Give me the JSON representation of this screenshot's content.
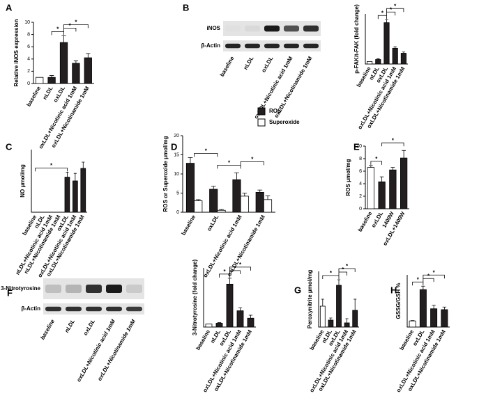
{
  "chart_data": [
    {
      "type": "bar",
      "panel": "A",
      "y_label": "Relative iNOS expression",
      "categories": [
        "baseline",
        "nLDL",
        "oxLDL",
        "oxLDL+Nicotinic acid 1mM",
        "oxLDL+Nicotinamide 1mM"
      ],
      "values": [
        1,
        1,
        6.7,
        3.3,
        4.2
      ],
      "errors": [
        0,
        0.3,
        1.1,
        0.4,
        0.7
      ],
      "colors": [
        "#ffffff",
        "#231f20",
        "#231f20",
        "#231f20",
        "#231f20"
      ],
      "ylim": [
        0,
        10
      ],
      "yticks": [
        0,
        2,
        4,
        6,
        8,
        10
      ],
      "significance": [
        {
          "text": "*",
          "between": [
            1,
            2
          ]
        },
        {
          "text": "*",
          "between": [
            2,
            3
          ]
        },
        {
          "text": "*",
          "between": [
            2,
            4
          ]
        }
      ]
    },
    {
      "type": "bar",
      "panel": "B",
      "y_label": "p-FAK/t-FAK (fold change)",
      "blot": {
        "bands": [
          "iNOS",
          "β-Actin"
        ],
        "lanes": [
          "baseline",
          "nLDL",
          "oxLDL",
          "oxLDL+Nicotinic acid 1mM",
          "oxLDL+Nicotinamide 1mM"
        ]
      },
      "categories": [
        "baseline",
        "nLDL",
        "oxLDL",
        "oxLDL+Nicotinic acid 1mM",
        "oxLDL+Nicotinamide 1mM"
      ],
      "values": [
        1,
        1.8,
        16.5,
        6.3,
        4.3
      ],
      "errors": [
        0,
        0.3,
        1.2,
        0.6,
        0.5
      ],
      "colors": [
        "#ffffff",
        "#231f20",
        "#231f20",
        "#231f20",
        "#231f20"
      ],
      "ylim": [
        0,
        20
      ],
      "significance": [
        {
          "text": "*",
          "between": [
            1,
            2
          ]
        },
        {
          "text": "*",
          "between": [
            2,
            3
          ]
        },
        {
          "text": "*",
          "between": [
            2,
            4
          ]
        }
      ]
    },
    {
      "type": "bar",
      "panel": "C",
      "y_label": "NO μmol/mg",
      "categories": [
        "baseline",
        "nLDL",
        "nLDL+Nicotinic acid 1mM",
        "nLDL+Nicotinamide 1mM",
        "oxLDL",
        "oxLDL+Nicotinic acid 1mM",
        "oxLDL+Nicotinamide 1mM"
      ],
      "values": [
        0,
        0,
        0,
        0,
        14,
        12.5,
        17.5
      ],
      "errors": [
        0,
        0,
        0,
        0,
        2,
        3,
        2.5
      ],
      "colors": [
        "#231f20",
        "#231f20",
        "#231f20",
        "#231f20",
        "#231f20",
        "#231f20",
        "#231f20"
      ],
      "ylim": [
        0,
        25
      ],
      "significance": [
        {
          "text": "*",
          "between": [
            0,
            4
          ]
        }
      ]
    },
    {
      "type": "grouped_bar",
      "panel": "D",
      "y_label": "ROS or Superoxide μmol/mg",
      "categories": [
        "baseline",
        "oxLDL",
        "oxLDL+Nicotinic acid 1mM",
        "oxLDL+Nicotinamide 1mM"
      ],
      "series": [
        {
          "name": "ROS",
          "color": "#231f20",
          "values": [
            12.8,
            6,
            8.5,
            5.2
          ],
          "errors": [
            1.5,
            0.8,
            1.8,
            0.6
          ]
        },
        {
          "name": "Superoxide",
          "color": "#ffffff",
          "values": [
            3,
            0.5,
            4.2,
            3.3
          ],
          "errors": [
            0.3,
            0.2,
            0.8,
            1
          ]
        }
      ],
      "ylim": [
        0,
        20
      ],
      "yticks": [
        0,
        5,
        10,
        15,
        20
      ],
      "significance": [
        {
          "text": "*",
          "between": [
            0,
            1
          ]
        },
        {
          "text": "*",
          "between": [
            1,
            2
          ]
        },
        {
          "text": "*",
          "between": [
            2,
            3
          ]
        }
      ]
    },
    {
      "type": "bar",
      "panel": "E",
      "y_label": "ROS μmol/mg",
      "categories": [
        "baseline",
        "oxLDL",
        "1400W",
        "oxLDL+1400W"
      ],
      "values": [
        6.6,
        4.3,
        6.2,
        8.1
      ],
      "errors": [
        0.3,
        0.8,
        0.4,
        1.2
      ],
      "colors": [
        "#ffffff",
        "#231f20",
        "#231f20",
        "#231f20"
      ],
      "ylim": [
        0,
        10
      ],
      "yticks": [
        0,
        2,
        4,
        6,
        8,
        10
      ],
      "significance": [
        {
          "text": "*",
          "between": [
            0,
            1
          ]
        },
        {
          "text": "*",
          "between": [
            1,
            3
          ]
        }
      ]
    },
    {
      "type": "bar",
      "panel": "F",
      "y_label": "3-Nitrotyrosine (fold change)",
      "blot": {
        "bands": [
          "3-Nitrotyrosine",
          "β-Actin"
        ],
        "lanes": [
          "baseline",
          "nLDL",
          "oxLDL",
          "oxLDL+Nicotinic acid 1mM",
          "oxLDL+Nicotinamide 1mM"
        ]
      },
      "categories": [
        "baseline",
        "nLDL",
        "oxLDL",
        "oxLDL+Nicotinic acid 1mM",
        "oxLDL+Nicotinamide 1mM"
      ],
      "values": [
        1,
        1.3,
        14.5,
        5.5,
        3
      ],
      "errors": [
        0,
        0.2,
        2,
        1,
        1
      ],
      "colors": [
        "#ffffff",
        "#231f20",
        "#231f20",
        "#231f20",
        "#231f20"
      ],
      "ylim": [
        0,
        20
      ],
      "significance": [
        {
          "text": "*",
          "between": [
            1,
            2
          ]
        },
        {
          "text": "*",
          "between": [
            2,
            3
          ]
        },
        {
          "text": "*",
          "between": [
            2,
            4
          ]
        }
      ]
    },
    {
      "type": "bar",
      "panel": "G",
      "y_label": "Peroxynitrite μmol/mg",
      "categories": [
        "baseline",
        "nLDL",
        "oxLDL",
        "oxLDL+Nicotinic acid 1mM",
        "oxLDL+Nicotinamide 1mM"
      ],
      "values": [
        1.5,
        0.5,
        3,
        0.3,
        1.2
      ],
      "errors": [
        0.5,
        0.15,
        0.4,
        0.3,
        0.8
      ],
      "colors": [
        "#ffffff",
        "#231f20",
        "#231f20",
        "#231f20",
        "#231f20"
      ],
      "ylim": [
        0,
        4
      ],
      "significance": [
        {
          "text": "*",
          "between": [
            0,
            2
          ]
        },
        {
          "text": "*",
          "between": [
            2,
            3
          ]
        },
        {
          "text": "*",
          "between": [
            2,
            4
          ]
        }
      ]
    },
    {
      "type": "bar",
      "panel": "H",
      "y_label": "GSSG/GSH %",
      "categories": [
        "baseline",
        "oxLDL",
        "oxLDL+Nicotinic acid 1mM",
        "oxLDL+Nicotinamide 1mM"
      ],
      "values": [
        7,
        43,
        21,
        20
      ],
      "errors": [
        0.5,
        4,
        4,
        3
      ],
      "colors": [
        "#ffffff",
        "#231f20",
        "#231f20",
        "#231f20"
      ],
      "ylim": [
        0,
        60
      ],
      "significance": [
        {
          "text": "*",
          "between": [
            0,
            1
          ]
        },
        {
          "text": "*",
          "between": [
            1,
            2
          ]
        },
        {
          "text": "*",
          "between": [
            1,
            3
          ]
        }
      ]
    }
  ]
}
